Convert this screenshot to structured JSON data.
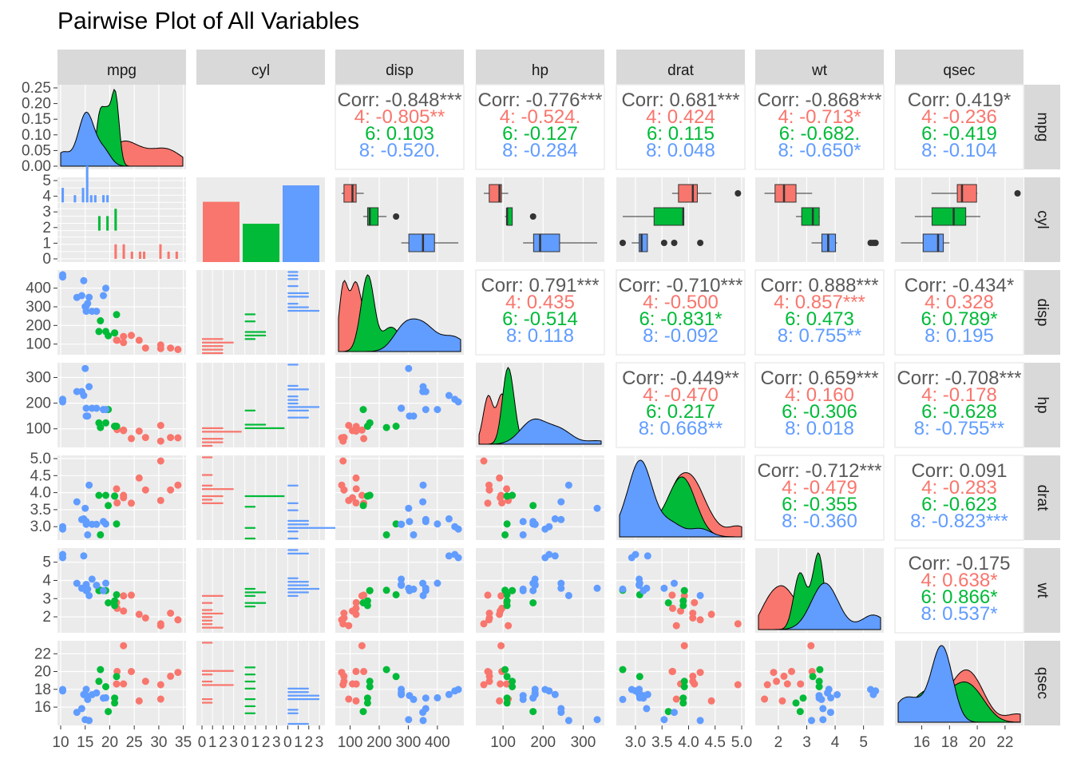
{
  "title": "Pairwise Plot of All Variables",
  "colors": {
    "4": "#F8766D",
    "6": "#00BA38",
    "8": "#619CFF",
    "overall": "#595959",
    "panel_bg": "#EBEBEB",
    "strip_bg": "#D9D9D9",
    "grid": "#FFFFFF"
  },
  "chart_data": {
    "type": "scatter",
    "variables": [
      "mpg",
      "cyl",
      "disp",
      "hp",
      "drat",
      "wt",
      "qsec"
    ],
    "groups": [
      "4",
      "6",
      "8"
    ],
    "axes": {
      "mpg": {
        "lim": [
          10,
          34.9
        ],
        "ticks": [
          10,
          15,
          20,
          25,
          30,
          35
        ],
        "tick_labels": [
          "10",
          "15",
          "20",
          "25",
          "30",
          "35"
        ]
      },
      "disp": {
        "lim": [
          60,
          480
        ],
        "ticks": [
          100,
          200,
          300,
          400
        ],
        "tick_labels": [
          "100",
          "200",
          "300",
          "400"
        ]
      },
      "hp": {
        "lim": [
          40,
          345
        ],
        "ticks": [
          100,
          200,
          300
        ],
        "tick_labels": [
          "100",
          "200",
          "300"
        ]
      },
      "drat": {
        "lim": [
          2.7,
          5.0
        ],
        "ticks": [
          3.0,
          3.5,
          4.0,
          4.5,
          5.0
        ],
        "tick_labels": [
          "3.0",
          "3.5",
          "4.0",
          "4.5",
          "5.0"
        ]
      },
      "wt": {
        "lim": [
          1.3,
          5.6
        ],
        "ticks": [
          2,
          3,
          4,
          5
        ],
        "tick_labels": [
          "2",
          "3",
          "4",
          "5"
        ]
      },
      "qsec": {
        "lim": [
          14.3,
          23.1
        ],
        "ticks": [
          16,
          18,
          20,
          22
        ],
        "tick_labels": [
          "16",
          "18",
          "20",
          "22"
        ]
      },
      "cyl_counts": {
        "ticks": [
          0,
          1,
          2,
          3
        ],
        "tick_labels": [
          "0",
          "1",
          "2",
          "3"
        ]
      }
    },
    "mpg_density_ylim": [
      0,
      0.25
    ],
    "mpg_density_ticks": [
      "0.00",
      "0.05",
      "0.10",
      "0.15",
      "0.20",
      "0.25"
    ],
    "cyl_row_ticks": [
      "0",
      "1",
      "2",
      "3",
      "4",
      "5"
    ],
    "cyl_counts": {
      "4": 11,
      "6": 7,
      "8": 14
    },
    "observations": {
      "4": [
        {
          "mpg": 22.8,
          "disp": 108,
          "hp": 93,
          "drat": 3.85,
          "wt": 2.32,
          "qsec": 18.61
        },
        {
          "mpg": 24.4,
          "disp": 146.7,
          "hp": 62,
          "drat": 3.69,
          "wt": 3.19,
          "qsec": 20.0
        },
        {
          "mpg": 22.8,
          "disp": 140.8,
          "hp": 95,
          "drat": 3.92,
          "wt": 3.15,
          "qsec": 22.9
        },
        {
          "mpg": 32.4,
          "disp": 78.7,
          "hp": 66,
          "drat": 4.08,
          "wt": 2.2,
          "qsec": 19.47
        },
        {
          "mpg": 30.4,
          "disp": 75.7,
          "hp": 52,
          "drat": 4.93,
          "wt": 1.615,
          "qsec": 18.52
        },
        {
          "mpg": 33.9,
          "disp": 71.1,
          "hp": 65,
          "drat": 4.22,
          "wt": 1.835,
          "qsec": 19.9
        },
        {
          "mpg": 21.5,
          "disp": 120.1,
          "hp": 97,
          "drat": 3.7,
          "wt": 2.465,
          "qsec": 20.01
        },
        {
          "mpg": 27.3,
          "disp": 79,
          "hp": 66,
          "drat": 4.08,
          "wt": 1.935,
          "qsec": 18.9
        },
        {
          "mpg": 26.0,
          "disp": 120.3,
          "hp": 91,
          "drat": 4.43,
          "wt": 2.14,
          "qsec": 16.7
        },
        {
          "mpg": 30.4,
          "disp": 95.1,
          "hp": 113,
          "drat": 3.77,
          "wt": 1.513,
          "qsec": 16.9
        },
        {
          "mpg": 21.4,
          "disp": 121,
          "hp": 109,
          "drat": 4.11,
          "wt": 2.78,
          "qsec": 18.6
        }
      ],
      "6": [
        {
          "mpg": 21.0,
          "disp": 160,
          "hp": 110,
          "drat": 3.9,
          "wt": 2.62,
          "qsec": 16.46
        },
        {
          "mpg": 21.0,
          "disp": 160,
          "hp": 110,
          "drat": 3.9,
          "wt": 2.875,
          "qsec": 17.02
        },
        {
          "mpg": 21.4,
          "disp": 258,
          "hp": 110,
          "drat": 3.08,
          "wt": 3.215,
          "qsec": 19.44
        },
        {
          "mpg": 18.1,
          "disp": 225,
          "hp": 105,
          "drat": 2.76,
          "wt": 3.46,
          "qsec": 20.22
        },
        {
          "mpg": 19.2,
          "disp": 167.6,
          "hp": 123,
          "drat": 3.92,
          "wt": 3.44,
          "qsec": 18.3
        },
        {
          "mpg": 17.8,
          "disp": 167.6,
          "hp": 123,
          "drat": 3.92,
          "wt": 3.44,
          "qsec": 18.9
        },
        {
          "mpg": 19.7,
          "disp": 145,
          "hp": 175,
          "drat": 3.62,
          "wt": 2.77,
          "qsec": 15.5
        }
      ],
      "8": [
        {
          "mpg": 18.7,
          "disp": 360,
          "hp": 175,
          "drat": 3.15,
          "wt": 3.44,
          "qsec": 17.02
        },
        {
          "mpg": 14.3,
          "disp": 360,
          "hp": 245,
          "drat": 3.21,
          "wt": 3.57,
          "qsec": 15.84
        },
        {
          "mpg": 16.4,
          "disp": 275.8,
          "hp": 180,
          "drat": 3.07,
          "wt": 4.07,
          "qsec": 17.4
        },
        {
          "mpg": 17.3,
          "disp": 275.8,
          "hp": 180,
          "drat": 3.07,
          "wt": 3.73,
          "qsec": 17.6
        },
        {
          "mpg": 15.2,
          "disp": 275.8,
          "hp": 180,
          "drat": 3.07,
          "wt": 3.78,
          "qsec": 18.0
        },
        {
          "mpg": 10.4,
          "disp": 472,
          "hp": 205,
          "drat": 2.93,
          "wt": 5.25,
          "qsec": 17.98
        },
        {
          "mpg": 10.4,
          "disp": 460,
          "hp": 215,
          "drat": 3.0,
          "wt": 5.424,
          "qsec": 17.82
        },
        {
          "mpg": 14.7,
          "disp": 440,
          "hp": 230,
          "drat": 3.23,
          "wt": 5.345,
          "qsec": 17.42
        },
        {
          "mpg": 15.5,
          "disp": 318,
          "hp": 150,
          "drat": 2.76,
          "wt": 3.52,
          "qsec": 16.87
        },
        {
          "mpg": 15.2,
          "disp": 304,
          "hp": 150,
          "drat": 3.15,
          "wt": 3.435,
          "qsec": 17.3
        },
        {
          "mpg": 13.3,
          "disp": 350,
          "hp": 245,
          "drat": 3.73,
          "wt": 3.84,
          "qsec": 15.41
        },
        {
          "mpg": 19.2,
          "disp": 400,
          "hp": 175,
          "drat": 3.08,
          "wt": 3.845,
          "qsec": 17.05
        },
        {
          "mpg": 15.8,
          "disp": 351,
          "hp": 264,
          "drat": 4.22,
          "wt": 3.17,
          "qsec": 14.5
        },
        {
          "mpg": 15.0,
          "disp": 301,
          "hp": 335,
          "drat": 3.54,
          "wt": 3.57,
          "qsec": 14.6
        }
      ]
    },
    "correlations": [
      {
        "row": "mpg",
        "col": "disp",
        "overall": "Corr: -0.848***",
        "g4": "4: -0.805**",
        "g6": "6: 0.103",
        "g8": "8: -0.520."
      },
      {
        "row": "mpg",
        "col": "hp",
        "overall": "Corr: -0.776***",
        "g4": "4: -0.524.",
        "g6": "6: -0.127",
        "g8": "8: -0.284"
      },
      {
        "row": "mpg",
        "col": "drat",
        "overall": "Corr: 0.681***",
        "g4": "4: 0.424",
        "g6": "6: 0.115",
        "g8": "8: 0.048"
      },
      {
        "row": "mpg",
        "col": "wt",
        "overall": "Corr: -0.868***",
        "g4": "4: -0.713*",
        "g6": "6: -0.682.",
        "g8": "8: -0.650*"
      },
      {
        "row": "mpg",
        "col": "qsec",
        "overall": "Corr: 0.419*",
        "g4": "4: -0.236",
        "g6": "6: -0.419",
        "g8": "8: -0.104"
      },
      {
        "row": "disp",
        "col": "hp",
        "overall": "Corr: 0.791***",
        "g4": "4: 0.435",
        "g6": "6: -0.514",
        "g8": "8: 0.118"
      },
      {
        "row": "disp",
        "col": "drat",
        "overall": "Corr: -0.710***",
        "g4": "4: -0.500",
        "g6": "6: -0.831*",
        "g8": "8: -0.092"
      },
      {
        "row": "disp",
        "col": "wt",
        "overall": "Corr: 0.888***",
        "g4": "4: 0.857***",
        "g6": "6: 0.473",
        "g8": "8: 0.755**"
      },
      {
        "row": "disp",
        "col": "qsec",
        "overall": "Corr: -0.434*",
        "g4": "4: 0.328",
        "g6": "6: 0.789*",
        "g8": "8: 0.195"
      },
      {
        "row": "hp",
        "col": "drat",
        "overall": "Corr: -0.449**",
        "g4": "4: -0.470",
        "g6": "6: 0.217",
        "g8": "8: 0.668**"
      },
      {
        "row": "hp",
        "col": "wt",
        "overall": "Corr: 0.659***",
        "g4": "4: 0.160",
        "g6": "6: -0.306",
        "g8": "8: 0.018"
      },
      {
        "row": "hp",
        "col": "qsec",
        "overall": "Corr: -0.708***",
        "g4": "4: -0.178",
        "g6": "6: -0.628",
        "g8": "8: -0.755**"
      },
      {
        "row": "drat",
        "col": "wt",
        "overall": "Corr: -0.712***",
        "g4": "4: -0.479",
        "g6": "6: -0.355",
        "g8": "8: -0.360"
      },
      {
        "row": "drat",
        "col": "qsec",
        "overall": "Corr: 0.091",
        "g4": "4: -0.283",
        "g6": "6: -0.623",
        "g8": "8: -0.823***"
      },
      {
        "row": "wt",
        "col": "qsec",
        "overall": "Corr: -0.175",
        "g4": "4: 0.638*",
        "g6": "6: 0.866*",
        "g8": "8: 0.537*"
      }
    ]
  }
}
